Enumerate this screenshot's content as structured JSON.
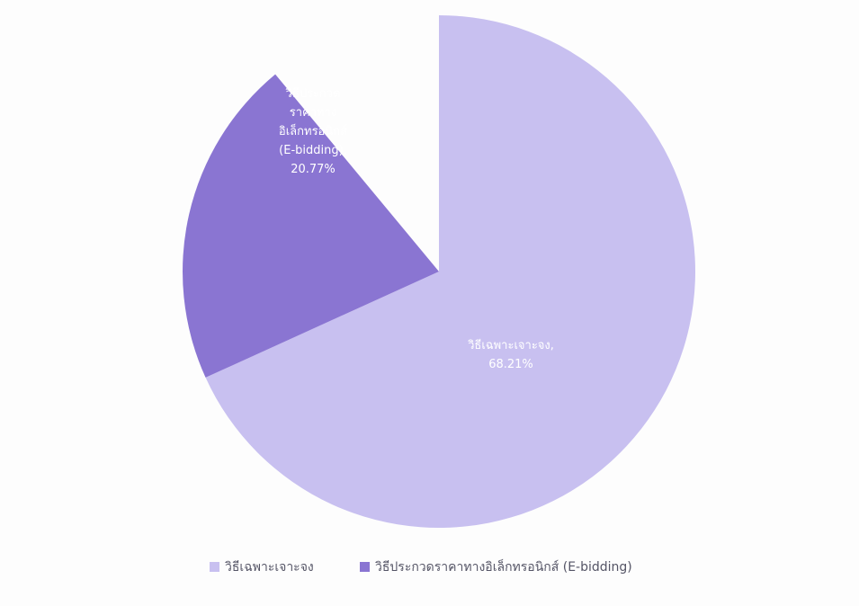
{
  "chart_data": {
    "type": "pie",
    "start_angle_deg": 0,
    "direction": "clockwise",
    "legend_position": "bottom",
    "slices": [
      {
        "name": "วิธีเฉพาะเจาะจง",
        "label_lines": [
          "วิธีเฉพาะเจาะจง,",
          "68.21%"
        ],
        "value": 68.21,
        "color": "#c8c0f0"
      },
      {
        "name": "วิธีประกวดราคาทางอิเล็กทรอนิกส์ (E-bidding)",
        "label_lines": [
          "วิธีประกวด",
          "ราคาทาง",
          "อิเล็กทรอนิกส์",
          "(E-bidding),",
          "20.77%"
        ],
        "value": 20.77,
        "color": "#8a75d2"
      }
    ],
    "legend": [
      {
        "text": "วิธีเฉพาะเจาะจง",
        "color": "#c8c0f0"
      },
      {
        "text": "วิธีประกวดราคาทางอิเล็กทรอนิกส์ (E-bidding)",
        "color": "#8a75d2"
      }
    ]
  }
}
